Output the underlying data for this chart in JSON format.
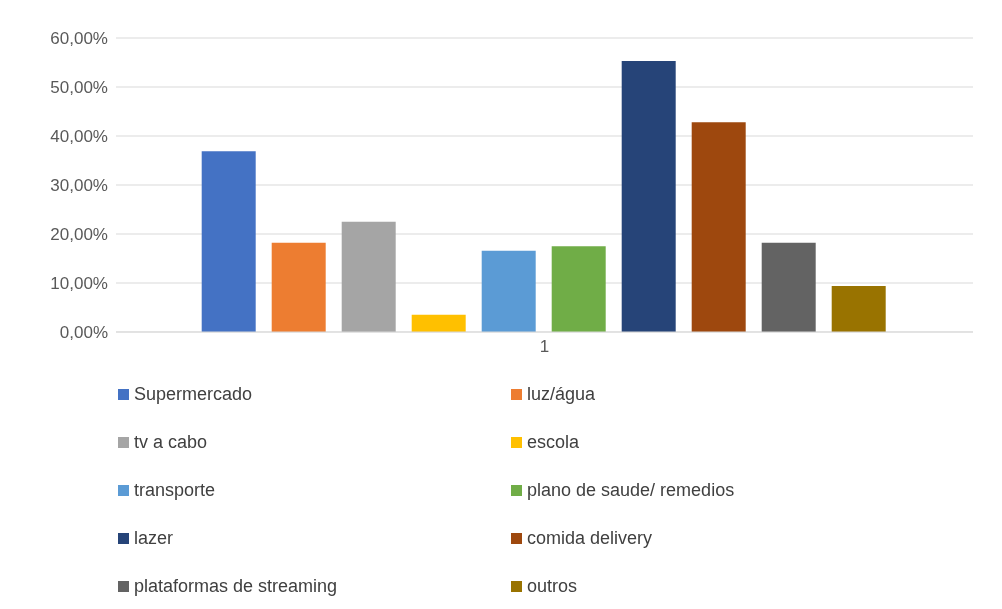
{
  "chart_data": {
    "type": "bar",
    "categories": [
      "1"
    ],
    "series": [
      {
        "name": "Supermercado",
        "color": "#4472c4",
        "values": [
          36.9
        ]
      },
      {
        "name": "luz/água",
        "color": "#ed7d31",
        "values": [
          18.2
        ]
      },
      {
        "name": "tv a cabo",
        "color": "#a5a5a5",
        "values": [
          22.5
        ]
      },
      {
        "name": "escola",
        "color": "#ffc000",
        "values": [
          3.5
        ]
      },
      {
        "name": "transporte",
        "color": "#5b9bd5",
        "values": [
          16.6
        ]
      },
      {
        "name": "plano de saude/ remedios",
        "color": "#70ad47",
        "values": [
          17.5
        ]
      },
      {
        "name": "lazer",
        "color": "#264478",
        "values": [
          55.3
        ]
      },
      {
        "name": "comida delivery",
        "color": "#9e480e",
        "values": [
          42.8
        ]
      },
      {
        "name": "plataformas de streaming",
        "color": "#636363",
        "values": [
          18.2
        ]
      },
      {
        "name": "outros",
        "color": "#997300",
        "values": [
          9.4
        ]
      }
    ],
    "ylim": [
      0,
      60
    ],
    "yticks": [
      {
        "value": 0,
        "label": "0,00%"
      },
      {
        "value": 10,
        "label": "10,00%"
      },
      {
        "value": 20,
        "label": "20,00%"
      },
      {
        "value": 30,
        "label": "30,00%"
      },
      {
        "value": 40,
        "label": "40,00%"
      },
      {
        "value": 50,
        "label": "50,00%"
      },
      {
        "value": 60,
        "label": "60,00%"
      }
    ],
    "grid": "y",
    "legend": "bottom"
  }
}
